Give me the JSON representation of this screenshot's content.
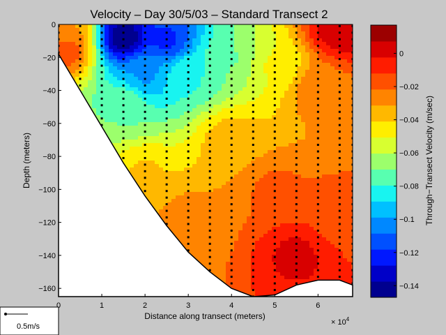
{
  "chart_data": {
    "type": "heatmap",
    "title": "Velocity – Day 30/5/03 – Standard Transect 2",
    "xlabel": "Distance along transect (meters)",
    "ylabel": "Depth (meters)",
    "x_exponent_label": "× 10",
    "x_exponent": "4",
    "xlim": [
      0,
      68000
    ],
    "ylim": [
      -165,
      0
    ],
    "xticks": [
      0,
      10000,
      20000,
      30000,
      40000,
      50000,
      60000
    ],
    "xtick_labels": [
      "0",
      "1",
      "2",
      "3",
      "4",
      "5",
      "6"
    ],
    "yticks": [
      0,
      -20,
      -40,
      -60,
      -80,
      -100,
      -120,
      -140,
      -160
    ],
    "ytick_labels": [
      "0",
      "−20",
      "−40",
      "−60",
      "−80",
      "−100",
      "−120",
      "−140",
      "−160"
    ],
    "colorbar": {
      "label": "Through−Transect Velocity (m/sec)",
      "clim": [
        -0.147,
        0.017
      ],
      "ticks": [
        0,
        -0.02,
        -0.04,
        -0.06,
        -0.08,
        -0.1,
        -0.12,
        -0.14
      ],
      "tick_labels": [
        "0",
        "−0.02",
        "−0.04",
        "−0.06",
        "−0.08",
        "−0.1",
        "−0.12",
        "−0.14"
      ],
      "colors": [
        "#00008f",
        "#0000c8",
        "#0018ff",
        "#0050ff",
        "#0088ff",
        "#00c0ff",
        "#18f4f0",
        "#58ffb0",
        "#9cff6c",
        "#d8ff30",
        "#ffee00",
        "#ffb800",
        "#ff8400",
        "#ff5000",
        "#ff1c00",
        "#d80000",
        "#9c0000"
      ]
    },
    "bottom_profile": {
      "x": [
        0,
        5000,
        10000,
        15000,
        20000,
        25000,
        30000,
        35000,
        40000,
        45000,
        50000,
        55000,
        60000,
        65000,
        68000
      ],
      "depth": [
        -18,
        -40,
        -62,
        -84,
        -104,
        -122,
        -138,
        -150,
        -160,
        -165,
        -164,
        -158,
        -155,
        -155,
        -158
      ]
    },
    "sample_stations_x": [
      0,
      5000,
      10000,
      15000,
      20000,
      25000,
      30000,
      35000,
      40000,
      45000,
      50000,
      55000,
      60000,
      65000,
      68000
    ],
    "velocity_samples": [
      {
        "x": 2000,
        "depth": -5,
        "v": -0.03
      },
      {
        "x": 2000,
        "depth": -15,
        "v": -0.015
      },
      {
        "x": 15000,
        "depth": -8,
        "v": -0.145
      },
      {
        "x": 25000,
        "depth": -10,
        "v": -0.12
      },
      {
        "x": 20000,
        "depth": -30,
        "v": -0.1
      },
      {
        "x": 30000,
        "depth": -30,
        "v": -0.08
      },
      {
        "x": 15000,
        "depth": -50,
        "v": -0.07
      },
      {
        "x": 40000,
        "depth": -20,
        "v": -0.07
      },
      {
        "x": 50000,
        "depth": -25,
        "v": -0.05
      },
      {
        "x": 20000,
        "depth": -90,
        "v": -0.04
      },
      {
        "x": 40000,
        "depth": -70,
        "v": -0.035
      },
      {
        "x": 60000,
        "depth": -40,
        "v": -0.025
      },
      {
        "x": 65000,
        "depth": -3,
        "v": 0.005
      },
      {
        "x": 30000,
        "depth": -120,
        "v": -0.025
      },
      {
        "x": 50000,
        "depth": -100,
        "v": -0.02
      },
      {
        "x": 55000,
        "depth": -140,
        "v": 0.0
      },
      {
        "x": 65000,
        "depth": -120,
        "v": -0.015
      }
    ]
  },
  "legend_box": {
    "label": "0.5m/s"
  }
}
